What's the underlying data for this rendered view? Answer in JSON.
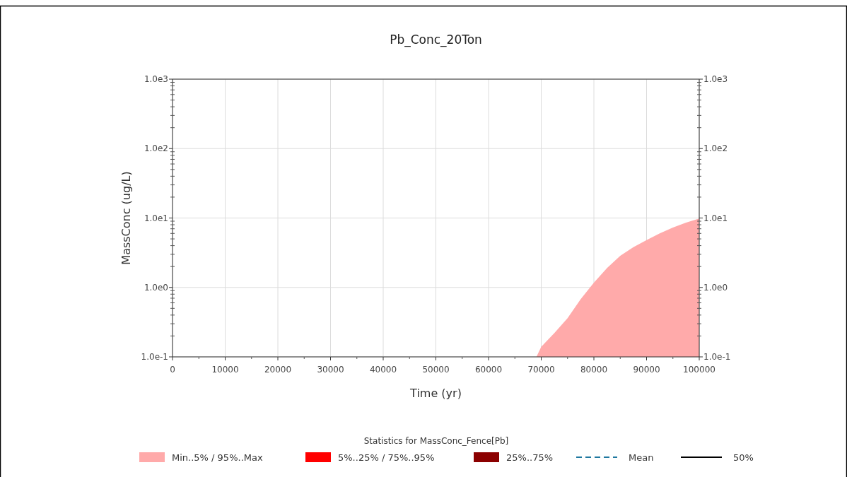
{
  "chart_data": {
    "type": "area",
    "title": "Pb_Conc_20Ton",
    "xlabel": "Time (yr)",
    "ylabel": "MassConc (ug/L)",
    "legend_title": "Statistics for MassConc_Fence[Pb]",
    "legend": "bottom",
    "grid": true,
    "log": "y",
    "xlim": [
      0,
      100000
    ],
    "xticks": [
      0,
      10000,
      20000,
      30000,
      40000,
      50000,
      60000,
      70000,
      80000,
      90000,
      100000
    ],
    "ylim": [
      0.1,
      1000
    ],
    "yticks": [
      {
        "value": 0.1,
        "label": "1.0e-1"
      },
      {
        "value": 1,
        "label": "1.0e0"
      },
      {
        "value": 10,
        "label": "1.0e1"
      },
      {
        "value": 100,
        "label": "1.0e2"
      },
      {
        "value": 1000,
        "label": "1.0e3"
      }
    ],
    "x": [
      69100,
      70000,
      72500,
      75000,
      77500,
      80000,
      82500,
      85000,
      87500,
      90000,
      92500,
      95000,
      97500,
      100000
    ],
    "series": [
      {
        "name": "Min..5% / 95%..Max",
        "color": "#ffaaaa",
        "values": [
          0.1,
          0.14,
          0.22,
          0.36,
          0.68,
          1.17,
          1.9,
          2.85,
          3.8,
          4.8,
          6.0,
          7.3,
          8.6,
          9.8
        ]
      },
      {
        "name": "5%..25% / 75%..95%",
        "color": "#ff0000",
        "values": [
          null,
          null,
          null,
          null,
          null,
          null,
          null,
          null,
          null,
          null,
          null,
          null,
          null,
          null
        ]
      },
      {
        "name": "25%..75%",
        "color": "#8b0000",
        "values": [
          null,
          null,
          null,
          null,
          null,
          null,
          null,
          null,
          null,
          null,
          null,
          null,
          null,
          null
        ]
      },
      {
        "name": "Mean",
        "type": "line",
        "line_style": "dashed",
        "color": "#1f78a0",
        "values": [
          null,
          null,
          null,
          null,
          null,
          null,
          null,
          null,
          null,
          null,
          null,
          null,
          null,
          null
        ]
      },
      {
        "name": "50%",
        "type": "line",
        "line_style": "solid",
        "color": "#000000",
        "values": [
          null,
          null,
          null,
          null,
          null,
          null,
          null,
          null,
          null,
          null,
          null,
          null,
          null,
          null
        ]
      }
    ]
  }
}
